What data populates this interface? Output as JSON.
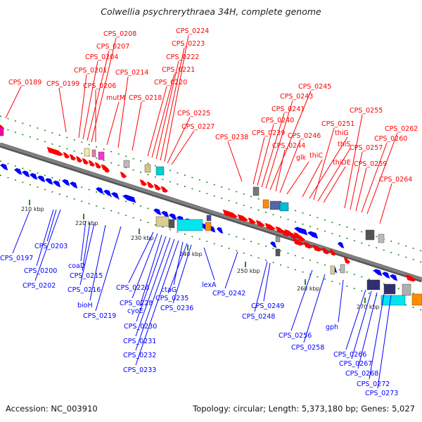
{
  "title": "Colwellia psychrerythraea 34H, complete genome",
  "footer": {
    "accession": "Accession: NC_003910",
    "summary": "Topology: circular; Length: 5,373,180 bp; Genes: 5,027"
  },
  "colors": {
    "forward_strand": "#ff0000",
    "reverse_strand": "#0000ff",
    "backbone": "#808080",
    "tick": "#228b22"
  },
  "scale_ticks": [
    "210 kbp",
    "220 kbp",
    "230 kbp",
    "240 kbp",
    "250 kbp",
    "260 kbp",
    "270 kbp"
  ],
  "forward_labels": [
    "CPS_0189",
    "CPS_0199",
    "CPS_0201",
    "CPS_0204",
    "CPS_0207",
    "CPS_0208",
    "CPS_0206",
    "mutM",
    "CPS_0214",
    "CPS_0218",
    "CPS_0220",
    "CPS_0221",
    "CPS_0222",
    "CPS_0223",
    "CPS_0224",
    "CPS_0225",
    "CPS_0227",
    "CPS_0238",
    "CPS_0239",
    "CPS_0240",
    "CPS_0241",
    "CPS_0243",
    "CPS_0245",
    "CPS_0244",
    "CPS_0246",
    "glk",
    "thiC",
    "thiG",
    "CPS_0251",
    "thiS",
    "thiDE",
    "CPS_0255",
    "CPS_0257",
    "CPS_0259",
    "CPS_0260",
    "CPS_0262",
    "CPS_0264"
  ],
  "reverse_labels": [
    "CPS_0197",
    "CPS_0203",
    "CPS_0200",
    "CPS_0202",
    "coaD",
    "CPS_0215",
    "CPS_0216",
    "bioH",
    "CPS_0219",
    "CPS_0226",
    "CPS_0228",
    "cyoE",
    "CPS_0230",
    "CPS_0231",
    "CPS_0232",
    "CPS_0233",
    "ctaG",
    "CPS_0235",
    "CPS_0236",
    "lexA",
    "CPS_0242",
    "CPS_0249",
    "CPS_0248",
    "CPS_0256",
    "CPS_0258",
    "gph",
    "CPS_0266",
    "CPS_0267",
    "CPS_0268",
    "CPS_0272",
    "CPS_0273"
  ]
}
